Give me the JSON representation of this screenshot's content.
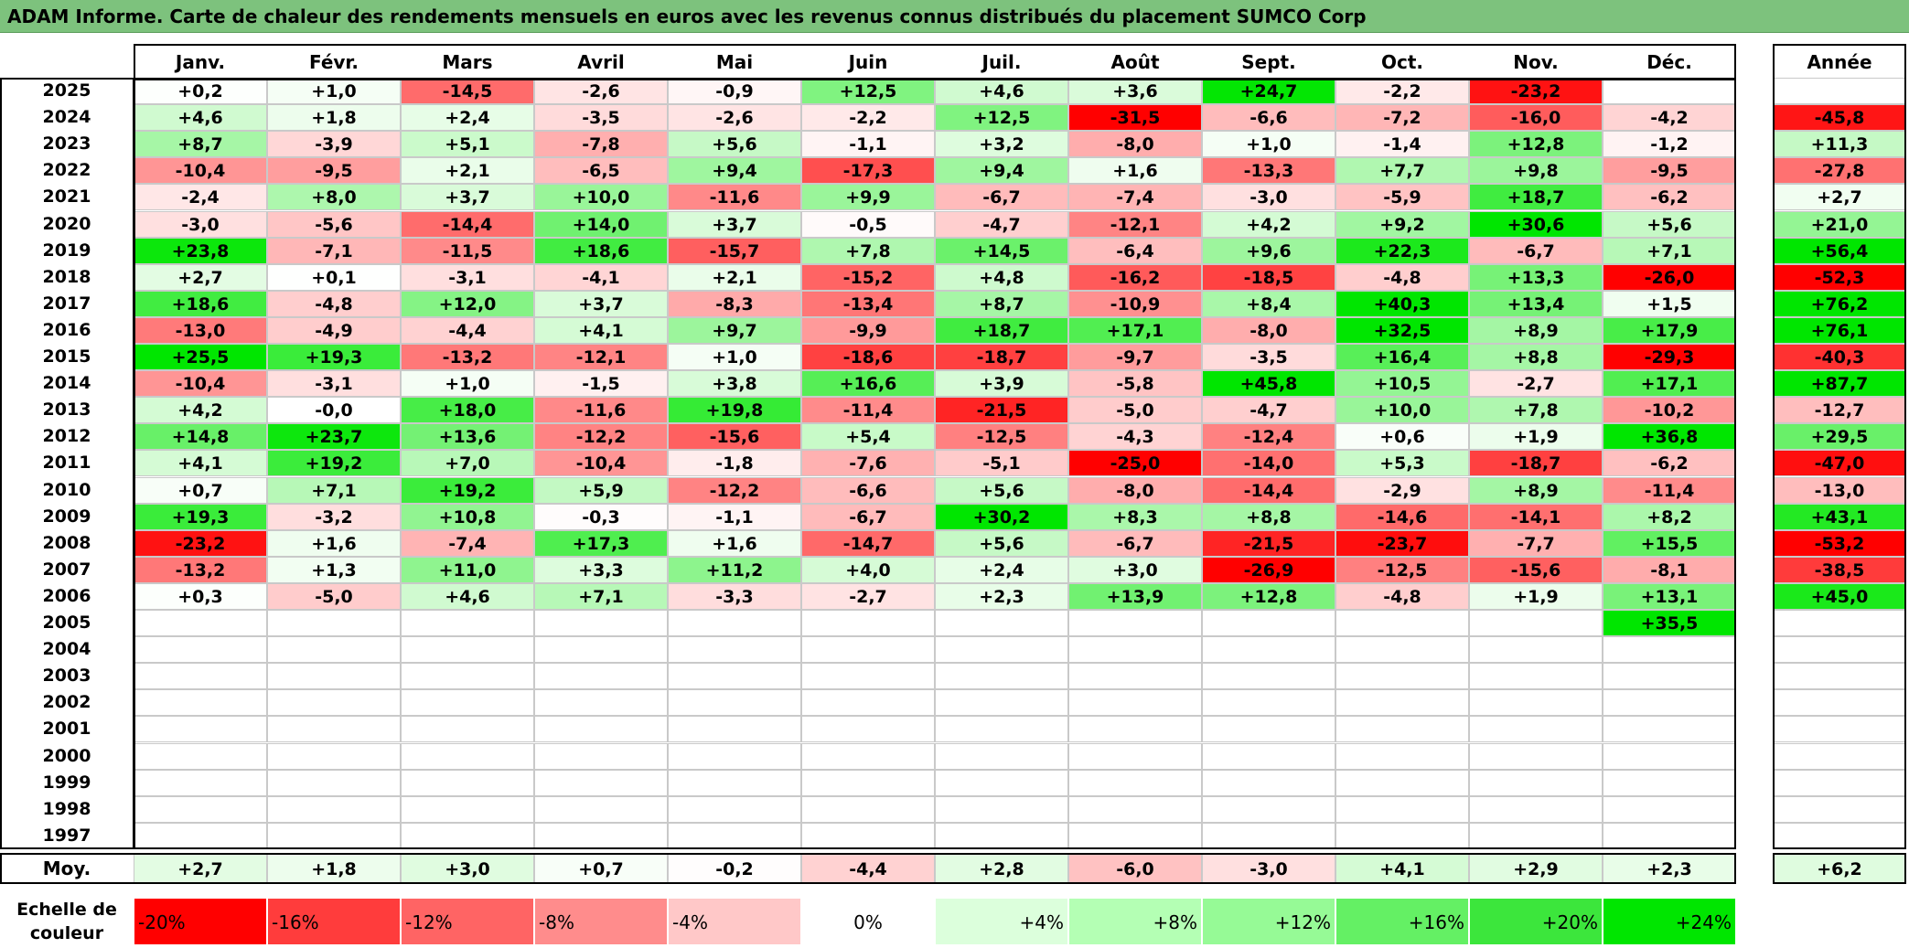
{
  "title": "ADAM Informe. Carte de chaleur des rendements mensuels en euros avec les revenus connus distribués du placement SUMCO Corp",
  "chart_data": {
    "type": "heatmap",
    "title": "ADAM Informe. Carte de chaleur des rendements mensuels en euros avec les revenus connus distribués du placement SUMCO Corp",
    "months": [
      "Janv.",
      "Févr.",
      "Mars",
      "Avril",
      "Mai",
      "Juin",
      "Juil.",
      "Août",
      "Sept.",
      "Oct.",
      "Nov.",
      "Déc."
    ],
    "year_header": "Année",
    "rows": [
      {
        "year": "2025",
        "values": [
          "+0,2",
          "+1,0",
          "-14,5",
          "-2,6",
          "-0,9",
          "+12,5",
          "+4,6",
          "+3,6",
          "+24,7",
          "-2,2",
          "-23,2",
          ""
        ],
        "annual": ""
      },
      {
        "year": "2024",
        "values": [
          "+4,6",
          "+1,8",
          "+2,4",
          "-3,5",
          "-2,6",
          "-2,2",
          "+12,5",
          "-31,5",
          "-6,6",
          "-7,2",
          "-16,0",
          "-4,2"
        ],
        "annual": "-45,8"
      },
      {
        "year": "2023",
        "values": [
          "+8,7",
          "-3,9",
          "+5,1",
          "-7,8",
          "+5,6",
          "-1,1",
          "+3,2",
          "-8,0",
          "+1,0",
          "-1,4",
          "+12,8",
          "-1,2"
        ],
        "annual": "+11,3"
      },
      {
        "year": "2022",
        "values": [
          "-10,4",
          "-9,5",
          "+2,1",
          "-6,5",
          "+9,4",
          "-17,3",
          "+9,4",
          "+1,6",
          "-13,3",
          "+7,7",
          "+9,8",
          "-9,5"
        ],
        "annual": "-27,8"
      },
      {
        "year": "2021",
        "values": [
          "-2,4",
          "+8,0",
          "+3,7",
          "+10,0",
          "-11,6",
          "+9,9",
          "-6,7",
          "-7,4",
          "-3,0",
          "-5,9",
          "+18,7",
          "-6,2"
        ],
        "annual": "+2,7"
      },
      {
        "year": "2020",
        "values": [
          "-3,0",
          "-5,6",
          "-14,4",
          "+14,0",
          "+3,7",
          "-0,5",
          "-4,7",
          "-12,1",
          "+4,2",
          "+9,2",
          "+30,6",
          "+5,6"
        ],
        "annual": "+21,0"
      },
      {
        "year": "2019",
        "values": [
          "+23,8",
          "-7,1",
          "-11,5",
          "+18,6",
          "-15,7",
          "+7,8",
          "+14,5",
          "-6,4",
          "+9,6",
          "+22,3",
          "-6,7",
          "+7,1"
        ],
        "annual": "+56,4"
      },
      {
        "year": "2018",
        "values": [
          "+2,7",
          "+0,1",
          "-3,1",
          "-4,1",
          "+2,1",
          "-15,2",
          "+4,8",
          "-16,2",
          "-18,5",
          "-4,8",
          "+13,3",
          "-26,0"
        ],
        "annual": "-52,3"
      },
      {
        "year": "2017",
        "values": [
          "+18,6",
          "-4,8",
          "+12,0",
          "+3,7",
          "-8,3",
          "-13,4",
          "+8,7",
          "-10,9",
          "+8,4",
          "+40,3",
          "+13,4",
          "+1,5"
        ],
        "annual": "+76,2"
      },
      {
        "year": "2016",
        "values": [
          "-13,0",
          "-4,9",
          "-4,4",
          "+4,1",
          "+9,7",
          "-9,9",
          "+18,7",
          "+17,1",
          "-8,0",
          "+32,5",
          "+8,9",
          "+17,9"
        ],
        "annual": "+76,1"
      },
      {
        "year": "2015",
        "values": [
          "+25,5",
          "+19,3",
          "-13,2",
          "-12,1",
          "+1,0",
          "-18,6",
          "-18,7",
          "-9,7",
          "-3,5",
          "+16,4",
          "+8,8",
          "-29,3"
        ],
        "annual": "-40,3"
      },
      {
        "year": "2014",
        "values": [
          "-10,4",
          "-3,1",
          "+1,0",
          "-1,5",
          "+3,8",
          "+16,6",
          "+3,9",
          "-5,8",
          "+45,8",
          "+10,5",
          "-2,7",
          "+17,1"
        ],
        "annual": "+87,7"
      },
      {
        "year": "2013",
        "values": [
          "+4,2",
          "-0,0",
          "+18,0",
          "-11,6",
          "+19,8",
          "-11,4",
          "-21,5",
          "-5,0",
          "-4,7",
          "+10,0",
          "+7,8",
          "-10,2"
        ],
        "annual": "-12,7"
      },
      {
        "year": "2012",
        "values": [
          "+14,8",
          "+23,7",
          "+13,6",
          "-12,2",
          "-15,6",
          "+5,4",
          "-12,5",
          "-4,3",
          "-12,4",
          "+0,6",
          "+1,9",
          "+36,8"
        ],
        "annual": "+29,5"
      },
      {
        "year": "2011",
        "values": [
          "+4,1",
          "+19,2",
          "+7,0",
          "-10,4",
          "-1,8",
          "-7,6",
          "-5,1",
          "-25,0",
          "-14,0",
          "+5,3",
          "-18,7",
          "-6,2"
        ],
        "annual": "-47,0"
      },
      {
        "year": "2010",
        "values": [
          "+0,7",
          "+7,1",
          "+19,2",
          "+5,9",
          "-12,2",
          "-6,6",
          "+5,6",
          "-8,0",
          "-14,4",
          "-2,9",
          "+8,9",
          "-11,4"
        ],
        "annual": "-13,0"
      },
      {
        "year": "2009",
        "values": [
          "+19,3",
          "-3,2",
          "+10,8",
          "-0,3",
          "-1,1",
          "-6,7",
          "+30,2",
          "+8,3",
          "+8,8",
          "-14,6",
          "-14,1",
          "+8,2"
        ],
        "annual": "+43,1"
      },
      {
        "year": "2008",
        "values": [
          "-23,2",
          "+1,6",
          "-7,4",
          "+17,3",
          "+1,6",
          "-14,7",
          "+5,6",
          "-6,7",
          "-21,5",
          "-23,7",
          "-7,7",
          "+15,5"
        ],
        "annual": "-53,2"
      },
      {
        "year": "2007",
        "values": [
          "-13,2",
          "+1,3",
          "+11,0",
          "+3,3",
          "+11,2",
          "+4,0",
          "+2,4",
          "+3,0",
          "-26,9",
          "-12,5",
          "-15,6",
          "-8,1"
        ],
        "annual": "-38,5"
      },
      {
        "year": "2006",
        "values": [
          "+0,3",
          "-5,0",
          "+4,6",
          "+7,1",
          "-3,3",
          "-2,7",
          "+2,3",
          "+13,9",
          "+12,8",
          "-4,8",
          "+1,9",
          "+13,1"
        ],
        "annual": "+45,0"
      },
      {
        "year": "2005",
        "values": [
          "",
          "",
          "",
          "",
          "",
          "",
          "",
          "",
          "",
          "",
          "",
          "+35,5"
        ],
        "annual": ""
      },
      {
        "year": "2004",
        "values": [
          "",
          "",
          "",
          "",
          "",
          "",
          "",
          "",
          "",
          "",
          "",
          ""
        ],
        "annual": ""
      },
      {
        "year": "2003",
        "values": [
          "",
          "",
          "",
          "",
          "",
          "",
          "",
          "",
          "",
          "",
          "",
          ""
        ],
        "annual": ""
      },
      {
        "year": "2002",
        "values": [
          "",
          "",
          "",
          "",
          "",
          "",
          "",
          "",
          "",
          "",
          "",
          ""
        ],
        "annual": ""
      },
      {
        "year": "2001",
        "values": [
          "",
          "",
          "",
          "",
          "",
          "",
          "",
          "",
          "",
          "",
          "",
          ""
        ],
        "annual": ""
      },
      {
        "year": "2000",
        "values": [
          "",
          "",
          "",
          "",
          "",
          "",
          "",
          "",
          "",
          "",
          "",
          ""
        ],
        "annual": ""
      },
      {
        "year": "1999",
        "values": [
          "",
          "",
          "",
          "",
          "",
          "",
          "",
          "",
          "",
          "",
          "",
          ""
        ],
        "annual": ""
      },
      {
        "year": "1998",
        "values": [
          "",
          "",
          "",
          "",
          "",
          "",
          "",
          "",
          "",
          "",
          "",
          ""
        ],
        "annual": ""
      },
      {
        "year": "1997",
        "values": [
          "",
          "",
          "",
          "",
          "",
          "",
          "",
          "",
          "",
          "",
          "",
          ""
        ],
        "annual": ""
      }
    ],
    "average": {
      "label": "Moy.",
      "values": [
        "+2,7",
        "+1,8",
        "+3,0",
        "+0,7",
        "-0,2",
        "-4,4",
        "+2,8",
        "-6,0",
        "-3,0",
        "+4,1",
        "+2,9",
        "+2,3"
      ],
      "annual": "+6,2"
    },
    "color_scale": {
      "label": "Echelle de couleur",
      "steps": [
        "-20%",
        "-16%",
        "-12%",
        "-8%",
        "-4%",
        "0%",
        "+4%",
        "+8%",
        "+12%",
        "+16%",
        "+20%",
        "+24%"
      ],
      "colors": [
        "#ff0000",
        "#ff3c3c",
        "#ff6464",
        "#ff8c8c",
        "#ffc8c8",
        "#ffffff",
        "#dcffdc",
        "#b4ffb4",
        "#96fa96",
        "#64f064",
        "#3ce63c",
        "#00e600"
      ]
    }
  }
}
